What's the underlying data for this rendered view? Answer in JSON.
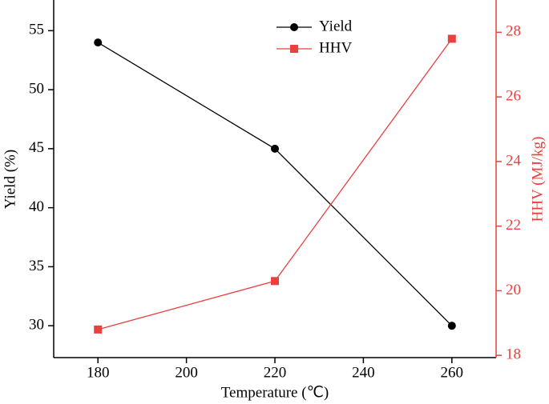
{
  "chart_data": {
    "type": "line",
    "x_label": "Temperature (℃)",
    "y_label": "Yield (%)",
    "y2_label": "HHV (MJ/kg)",
    "x": [
      180,
      220,
      260
    ],
    "series": [
      {
        "name": "Yield",
        "color": "#000000",
        "marker": "circle",
        "values": [
          54,
          45,
          30
        ]
      },
      {
        "name": "HHV",
        "color": "#e8413f",
        "marker": "square",
        "axis": "y2",
        "values": [
          18.8,
          20.3,
          27.8
        ]
      }
    ],
    "xlim": [
      170,
      270
    ],
    "xticks": [
      180,
      200,
      220,
      240,
      260
    ],
    "ylim": [
      27.3,
      57.6
    ],
    "yticks": [
      30,
      35,
      40,
      45,
      50,
      55
    ],
    "y2lim": [
      17.93,
      29
    ],
    "y2ticks": [
      18,
      20,
      22,
      24,
      26,
      28
    ],
    "legend": "top"
  }
}
